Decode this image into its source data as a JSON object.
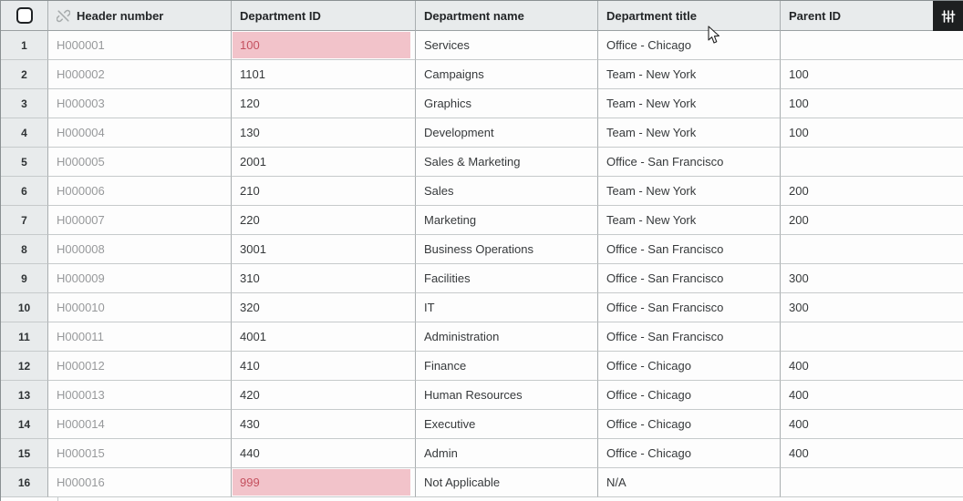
{
  "controls": {
    "select_all_checkbox": {
      "checked": false
    },
    "column_settings_button": {
      "icon": "sliders-icon"
    }
  },
  "table": {
    "columns": [
      {
        "key": "header_number",
        "label": "Header number",
        "icon": "unlink-icon"
      },
      {
        "key": "department_id",
        "label": "Department ID"
      },
      {
        "key": "department_name",
        "label": "Department name"
      },
      {
        "key": "department_title",
        "label": "Department title"
      },
      {
        "key": "parent_id",
        "label": "Parent ID"
      }
    ],
    "rows": [
      {
        "index": "1",
        "header_number": "H000001",
        "department_id": "100",
        "department_id_invalid": true,
        "department_name": "Services",
        "department_title": "Office - Chicago",
        "parent_id": ""
      },
      {
        "index": "2",
        "header_number": "H000002",
        "department_id": "1101",
        "department_id_invalid": false,
        "department_name": "Campaigns",
        "department_title": "Team - New York",
        "parent_id": "100"
      },
      {
        "index": "3",
        "header_number": "H000003",
        "department_id": "120",
        "department_id_invalid": false,
        "department_name": "Graphics",
        "department_title": "Team - New York",
        "parent_id": "100"
      },
      {
        "index": "4",
        "header_number": "H000004",
        "department_id": "130",
        "department_id_invalid": false,
        "department_name": "Development",
        "department_title": "Team - New York",
        "parent_id": "100"
      },
      {
        "index": "5",
        "header_number": "H000005",
        "department_id": "2001",
        "department_id_invalid": false,
        "department_name": "Sales & Marketing",
        "department_title": "Office - San Francisco",
        "parent_id": ""
      },
      {
        "index": "6",
        "header_number": "H000006",
        "department_id": "210",
        "department_id_invalid": false,
        "department_name": "Sales",
        "department_title": "Team - New York",
        "parent_id": "200"
      },
      {
        "index": "7",
        "header_number": "H000007",
        "department_id": "220",
        "department_id_invalid": false,
        "department_name": "Marketing",
        "department_title": "Team - New York",
        "parent_id": "200"
      },
      {
        "index": "8",
        "header_number": "H000008",
        "department_id": "3001",
        "department_id_invalid": false,
        "department_name": "Business Operations",
        "department_title": "Office - San Francisco",
        "parent_id": ""
      },
      {
        "index": "9",
        "header_number": "H000009",
        "department_id": "310",
        "department_id_invalid": false,
        "department_name": "Facilities",
        "department_title": "Office - San Francisco",
        "parent_id": "300"
      },
      {
        "index": "10",
        "header_number": "H000010",
        "department_id": "320",
        "department_id_invalid": false,
        "department_name": "IT",
        "department_title": "Office - San Francisco",
        "parent_id": "300"
      },
      {
        "index": "11",
        "header_number": "H000011",
        "department_id": "4001",
        "department_id_invalid": false,
        "department_name": "Administration",
        "department_title": "Office - San Francisco",
        "parent_id": ""
      },
      {
        "index": "12",
        "header_number": "H000012",
        "department_id": "410",
        "department_id_invalid": false,
        "department_name": "Finance",
        "department_title": "Office - Chicago",
        "parent_id": "400"
      },
      {
        "index": "13",
        "header_number": "H000013",
        "department_id": "420",
        "department_id_invalid": false,
        "department_name": "Human Resources",
        "department_title": "Office - Chicago",
        "parent_id": "400"
      },
      {
        "index": "14",
        "header_number": "H000014",
        "department_id": "430",
        "department_id_invalid": false,
        "department_name": "Executive",
        "department_title": "Office - Chicago",
        "parent_id": "400"
      },
      {
        "index": "15",
        "header_number": "H000015",
        "department_id": "440",
        "department_id_invalid": false,
        "department_name": "Admin",
        "department_title": "Office - Chicago",
        "parent_id": "400"
      },
      {
        "index": "16",
        "header_number": "H000016",
        "department_id": "999",
        "department_id_invalid": true,
        "department_name": "Not Applicable",
        "department_title": "N/A",
        "parent_id": ""
      }
    ]
  },
  "colors": {
    "invalid_cell_bg": "#f2c3ca",
    "invalid_cell_text": "#c4505e",
    "header_bg": "#e8ebec",
    "settings_button_bg": "#1d1f20",
    "muted_text": "#97999b"
  }
}
